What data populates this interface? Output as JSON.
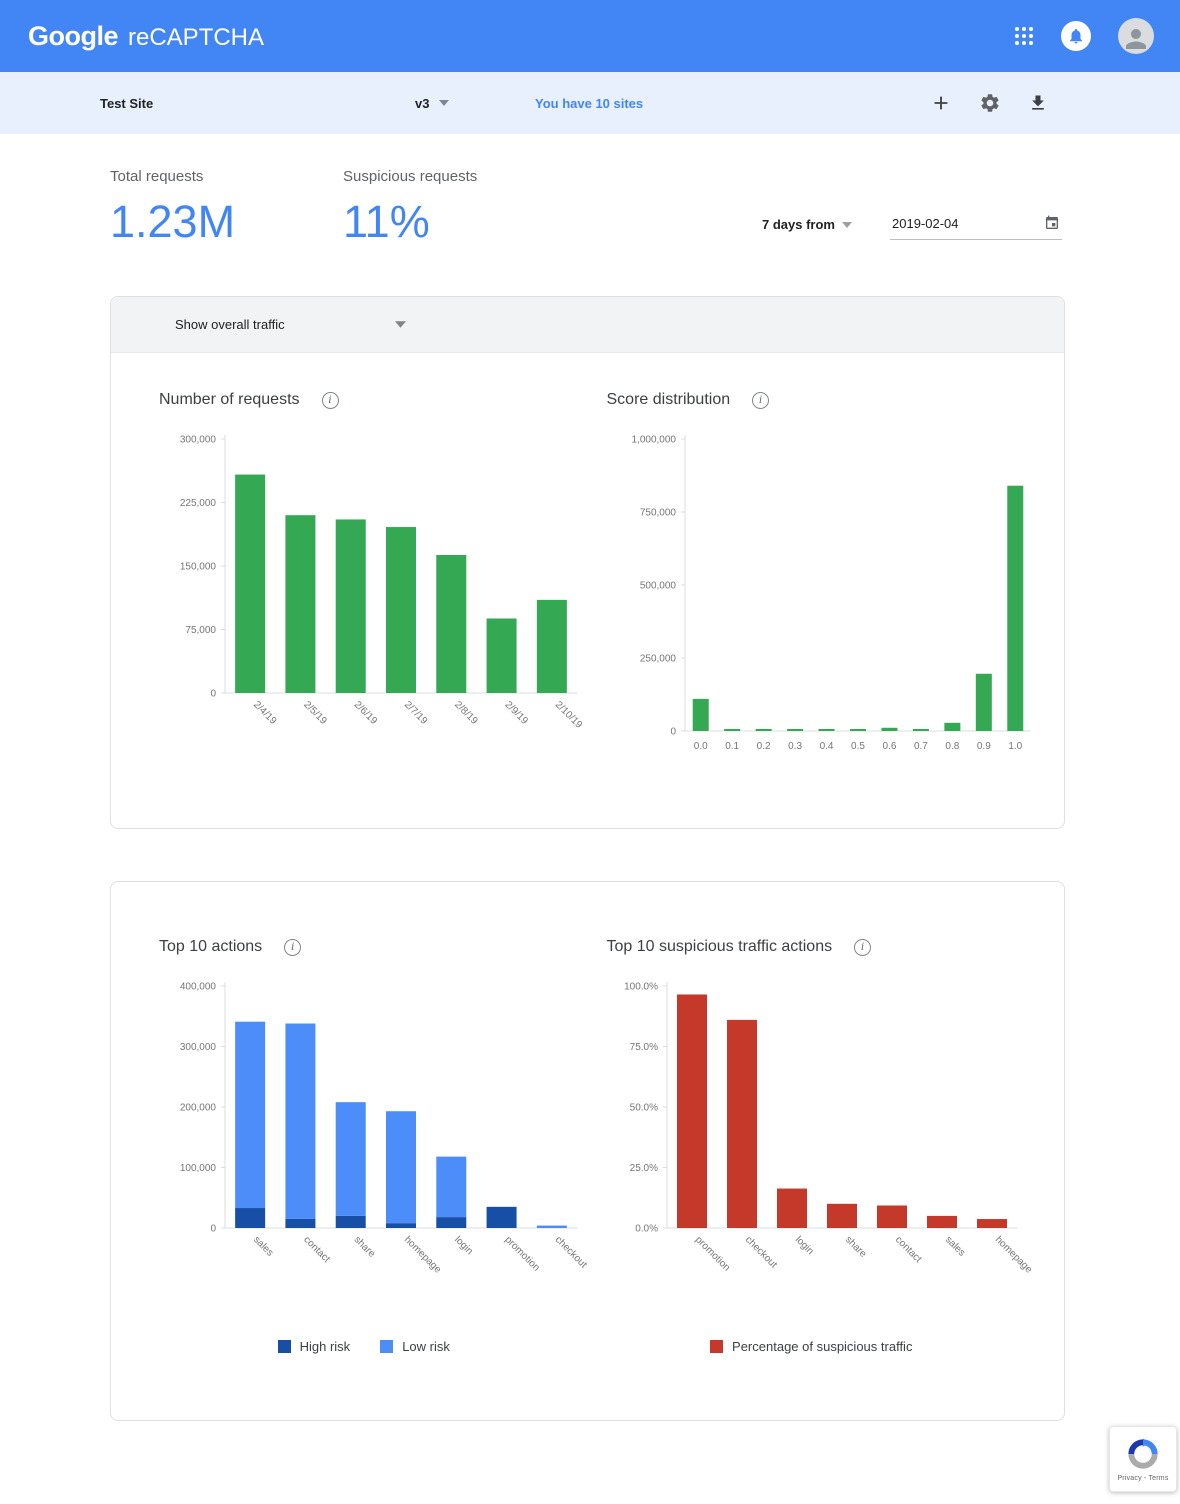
{
  "header": {
    "logo": {
      "google": "Google",
      "product": "reCAPTCHA"
    }
  },
  "toolbar": {
    "site_name": "Test Site",
    "version": "v3",
    "sites_link": "You have 10 sites"
  },
  "stats": {
    "total": {
      "label": "Total requests",
      "value": "1.23M"
    },
    "suspicious": {
      "label": "Suspicious requests",
      "value": "11%"
    },
    "period": {
      "label": "7 days from",
      "date": "2019-02-04"
    }
  },
  "overview": {
    "filter": "Show overall traffic"
  },
  "chart_data": [
    {
      "type": "bar",
      "title": "Number of requests",
      "categories": [
        "2/4/19",
        "2/5/19",
        "2/6/19",
        "2/7/19",
        "2/8/19",
        "2/9/19",
        "2/10/19"
      ],
      "values": [
        258000,
        210000,
        205000,
        196000,
        163000,
        88000,
        110000
      ],
      "ylim": [
        0,
        300000
      ],
      "yticks": [
        0,
        75000,
        150000,
        225000,
        300000
      ],
      "ytick_labels": [
        "0",
        "75,000",
        "150,000",
        "225,000",
        "300,000"
      ],
      "bar_color": "#34a853",
      "rotate_labels": true,
      "grid": false,
      "legend_position": "none"
    },
    {
      "type": "bar",
      "title": "Score distribution",
      "categories": [
        "0.0",
        "0.1",
        "0.2",
        "0.3",
        "0.4",
        "0.5",
        "0.6",
        "0.7",
        "0.8",
        "0.9",
        "1.0"
      ],
      "values": [
        110000,
        3000,
        4000,
        5000,
        3000,
        4000,
        11000,
        7000,
        28000,
        196000,
        840000
      ],
      "ylim": [
        0,
        1000000
      ],
      "yticks": [
        0,
        250000,
        500000,
        750000,
        1000000
      ],
      "ytick_labels": [
        "0",
        "250,000",
        "500,000",
        "750,000",
        "1,000,000"
      ],
      "bar_color": "#34a853",
      "rotate_labels": false,
      "grid": false,
      "legend_position": "none"
    },
    {
      "type": "stacked-bar",
      "title": "Top 10 actions",
      "categories": [
        "sales",
        "contact",
        "share",
        "homepage",
        "login",
        "promotion",
        "checkout"
      ],
      "series": [
        {
          "name": "High risk",
          "color": "#174ea6",
          "values": [
            33000,
            15000,
            20000,
            8000,
            18000,
            35000,
            0
          ]
        },
        {
          "name": "Low risk",
          "color": "#4d8df9",
          "values": [
            308000,
            323000,
            188000,
            185000,
            100000,
            0,
            4000
          ]
        }
      ],
      "ylim": [
        0,
        400000
      ],
      "yticks": [
        0,
        100000,
        200000,
        300000,
        400000
      ],
      "ytick_labels": [
        "0",
        "100,000",
        "200,000",
        "300,000",
        "400,000"
      ],
      "rotate_labels": true,
      "grid": false,
      "legend_position": "bottom"
    },
    {
      "type": "bar",
      "title": "Top 10 suspicious traffic actions",
      "legend": "Percentage of suspicious traffic",
      "categories": [
        "promotion",
        "checkout",
        "login",
        "share",
        "contact",
        "sales",
        "homepage"
      ],
      "values": [
        96.5,
        86,
        16.3,
        10,
        9.3,
        5,
        3.7
      ],
      "ylim": [
        0,
        100
      ],
      "yticks": [
        0,
        25,
        50,
        75,
        100
      ],
      "ytick_labels": [
        "0.0%",
        "25.0%",
        "50.0%",
        "75.0%",
        "100.0%"
      ],
      "bar_color": "#c5392b",
      "rotate_labels": true,
      "grid": false,
      "legend_position": "bottom"
    }
  ],
  "badge": {
    "privacy_terms": "Privacy - Terms"
  },
  "colors": {
    "header_blue": "#4285f4",
    "toolbar_blue": "#e8f0fe",
    "accent_blue": "#4285f4",
    "bar_green": "#34a853",
    "high_risk_blue": "#174ea6",
    "low_risk_blue": "#4d8df9",
    "suspicious_red": "#c5392b"
  }
}
